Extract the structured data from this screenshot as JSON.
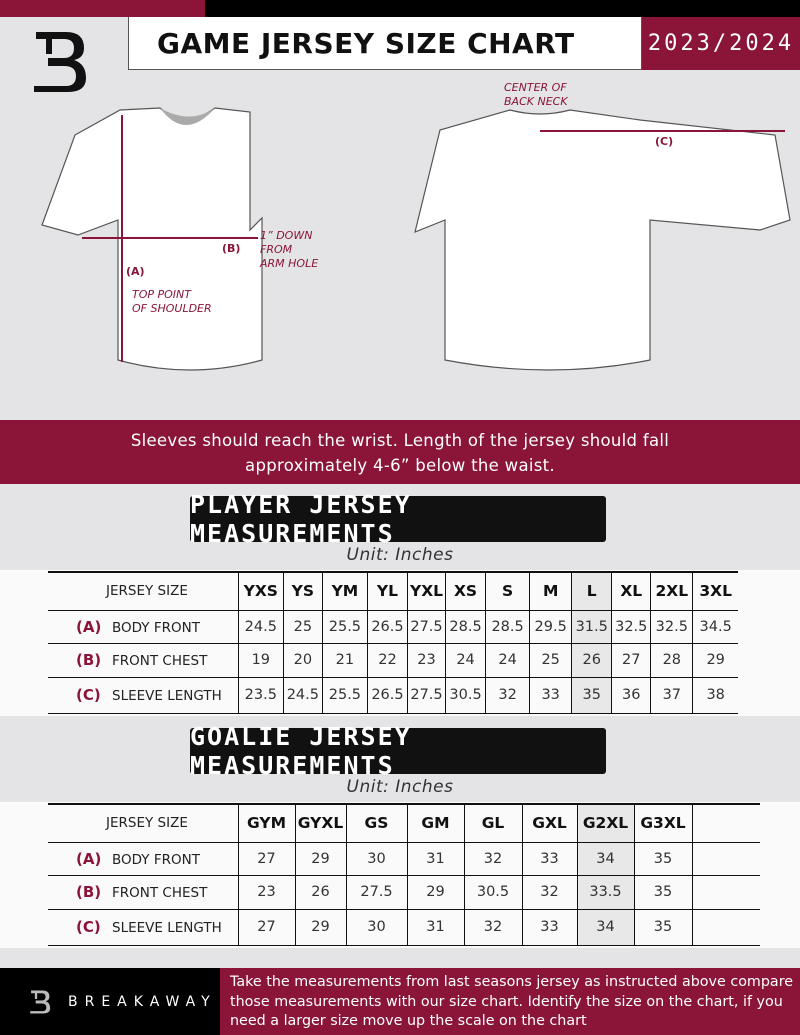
{
  "header": {
    "title": "GAME JERSEY SIZE CHART",
    "season": "2023/2024",
    "logo": "B-logo"
  },
  "diagram": {
    "label_center_back_neck_1": "CENTER OF",
    "label_center_back_neck_2": "BACK NECK",
    "label_a": "(A)",
    "label_b": "(B)",
    "label_c": "(C)",
    "label_down_1": "1” DOWN",
    "label_down_2": "FROM",
    "label_down_3": "ARM HOLE",
    "label_shoulder_1": "TOP POINT",
    "label_shoulder_2": "OF SHOULDER"
  },
  "banner": {
    "line1": "Sleeves should reach the wrist. Length of the jersey should fall",
    "line2": "approximately 4-6” below the waist."
  },
  "player": {
    "heading": "PLAYER JERSEY MEASUREMENTS",
    "unit": "Unit: Inches",
    "size_label": "JERSEY SIZE",
    "sizes": [
      "YXS",
      "YS",
      "YM",
      "YL",
      "YXL",
      "XS",
      "S",
      "M",
      "L",
      "XL",
      "2XL",
      "3XL"
    ],
    "rows": [
      {
        "letter": "(A)",
        "label": "BODY FRONT",
        "values": [
          "24.5",
          "25",
          "25.5",
          "26.5",
          "27.5",
          "28.5",
          "28.5",
          "29.5",
          "31.5",
          "32.5",
          "32.5",
          "34.5"
        ]
      },
      {
        "letter": "(B)",
        "label": "FRONT CHEST",
        "values": [
          "19",
          "20",
          "21",
          "22",
          "23",
          "24",
          "24",
          "25",
          "26",
          "27",
          "28",
          "29"
        ]
      },
      {
        "letter": "(C)",
        "label": "SLEEVE LENGTH",
        "values": [
          "23.5",
          "24.5",
          "25.5",
          "26.5",
          "27.5",
          "30.5",
          "32",
          "33",
          "35",
          "36",
          "37",
          "38"
        ]
      }
    ]
  },
  "goalie": {
    "heading": "GOALIE JERSEY MEASUREMENTS",
    "unit": "Unit: Inches",
    "size_label": "JERSEY SIZE",
    "sizes": [
      "GYM",
      "GYXL",
      "GS",
      "GM",
      "GL",
      "GXL",
      "G2XL",
      "G3XL",
      ""
    ],
    "rows": [
      {
        "letter": "(A)",
        "label": "BODY FRONT",
        "values": [
          "27",
          "29",
          "30",
          "31",
          "32",
          "33",
          "34",
          "35",
          ""
        ]
      },
      {
        "letter": "(B)",
        "label": "FRONT CHEST",
        "values": [
          "23",
          "26",
          "27.5",
          "29",
          "30.5",
          "32",
          "33.5",
          "35",
          ""
        ]
      },
      {
        "letter": "(C)",
        "label": "SLEEVE LENGTH",
        "values": [
          "27",
          "29",
          "30",
          "31",
          "32",
          "33",
          "34",
          "35",
          ""
        ]
      }
    ]
  },
  "footer": {
    "brand": "BREAKAWAY",
    "text": "Take the measurements from last seasons jersey as instructed above compare those measurements  with our size chart. Identify the size on the chart, if you need a larger size move up the scale on the chart"
  },
  "colors": {
    "brand": "#8a1538",
    "dark": "#111111",
    "background": "#e4e4e6"
  }
}
